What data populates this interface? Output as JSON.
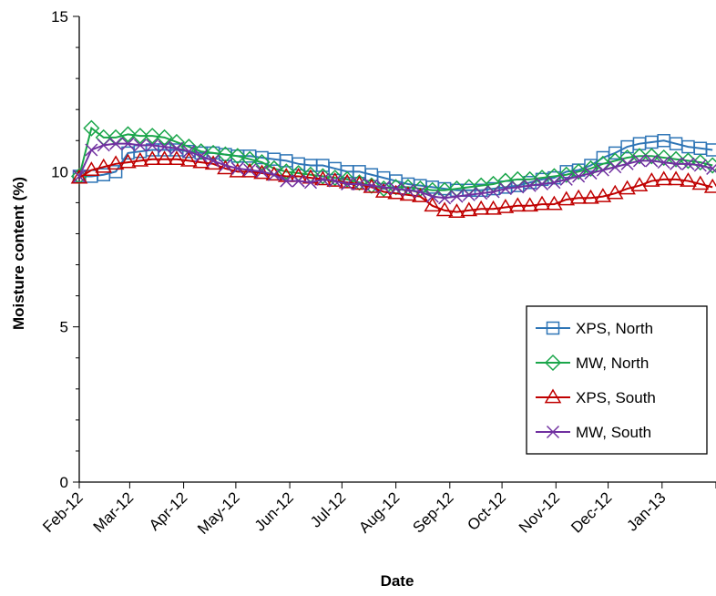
{
  "chart_data": {
    "type": "line",
    "xlabel": "Date",
    "ylabel": "Moisture content (%)",
    "x_tick_labels": [
      "Feb-12",
      "Mar-12",
      "Apr-12",
      "May-12",
      "Jun-12",
      "Jul-12",
      "Aug-12",
      "Sep-12",
      "Oct-12",
      "Nov-12",
      "Dec-12",
      "Jan-13"
    ],
    "y_ticks": [
      0,
      5,
      10,
      15
    ],
    "y_tick_labels": [
      "0",
      "5",
      "10",
      "15"
    ],
    "ylim": [
      0,
      15
    ],
    "xlim": [
      "2012-02-01",
      "2013-02-01"
    ],
    "grid": false,
    "legend_position": "bottom-right",
    "x": [
      "2012-02-01",
      "2012-02-08",
      "2012-02-15",
      "2012-02-22",
      "2012-02-29",
      "2012-03-07",
      "2012-03-14",
      "2012-03-21",
      "2012-03-28",
      "2012-04-04",
      "2012-04-11",
      "2012-04-18",
      "2012-04-25",
      "2012-05-02",
      "2012-05-09",
      "2012-05-16",
      "2012-05-23",
      "2012-05-30",
      "2012-06-06",
      "2012-06-13",
      "2012-06-20",
      "2012-06-27",
      "2012-07-04",
      "2012-07-11",
      "2012-07-18",
      "2012-07-25",
      "2012-08-01",
      "2012-08-08",
      "2012-08-15",
      "2012-08-22",
      "2012-08-29",
      "2012-09-05",
      "2012-09-12",
      "2012-09-19",
      "2012-09-26",
      "2012-10-03",
      "2012-10-10",
      "2012-10-17",
      "2012-10-24",
      "2012-10-31",
      "2012-11-07",
      "2012-11-14",
      "2012-11-21",
      "2012-11-28",
      "2012-12-05",
      "2012-12-12",
      "2012-12-19",
      "2012-12-26",
      "2013-01-02",
      "2013-01-09",
      "2013-01-16",
      "2013-01-23",
      "2013-01-30"
    ],
    "series": [
      {
        "name": "XPS, North",
        "color": "#2e75b6",
        "marker": "square",
        "values": [
          9.85,
          9.85,
          9.9,
          10.0,
          10.6,
          10.65,
          10.7,
          10.7,
          10.7,
          10.65,
          10.6,
          10.6,
          10.55,
          10.5,
          10.5,
          10.45,
          10.4,
          10.35,
          10.25,
          10.2,
          10.2,
          10.1,
          10.0,
          10.0,
          9.9,
          9.8,
          9.7,
          9.6,
          9.55,
          9.5,
          9.45,
          9.4,
          9.4,
          9.4,
          9.45,
          9.5,
          9.55,
          9.65,
          9.75,
          9.8,
          10.0,
          10.05,
          10.2,
          10.45,
          10.6,
          10.8,
          10.9,
          10.95,
          11.0,
          10.9,
          10.8,
          10.75,
          10.7
        ]
      },
      {
        "name": "MW, North",
        "color": "#1aa64a",
        "marker": "diamond",
        "values": [
          9.85,
          11.4,
          11.1,
          11.1,
          11.2,
          11.15,
          11.15,
          11.1,
          10.95,
          10.8,
          10.65,
          10.6,
          10.55,
          10.5,
          10.4,
          10.3,
          10.1,
          10.0,
          9.95,
          9.9,
          9.85,
          9.8,
          9.75,
          9.65,
          9.55,
          9.45,
          9.5,
          9.5,
          9.45,
          9.4,
          9.4,
          9.45,
          9.5,
          9.55,
          9.6,
          9.7,
          9.75,
          9.75,
          9.8,
          9.85,
          9.9,
          10.0,
          10.1,
          10.25,
          10.35,
          10.45,
          10.5,
          10.5,
          10.45,
          10.4,
          10.35,
          10.3,
          10.2
        ]
      },
      {
        "name": "XPS, South",
        "color": "#c00000",
        "marker": "triangle",
        "values": [
          9.8,
          10.05,
          10.15,
          10.25,
          10.3,
          10.35,
          10.4,
          10.4,
          10.4,
          10.35,
          10.3,
          10.25,
          10.1,
          10.0,
          10.0,
          9.95,
          9.9,
          9.85,
          9.85,
          9.8,
          9.75,
          9.7,
          9.65,
          9.6,
          9.5,
          9.35,
          9.3,
          9.25,
          9.2,
          8.9,
          8.75,
          8.7,
          8.75,
          8.8,
          8.8,
          8.85,
          8.9,
          8.9,
          8.95,
          8.95,
          9.1,
          9.15,
          9.15,
          9.2,
          9.3,
          9.45,
          9.55,
          9.7,
          9.75,
          9.75,
          9.7,
          9.6,
          9.5
        ]
      },
      {
        "name": "MW, South",
        "color": "#7030a0",
        "marker": "x",
        "values": [
          9.85,
          10.7,
          10.85,
          10.9,
          10.9,
          10.85,
          10.85,
          10.8,
          10.75,
          10.65,
          10.5,
          10.35,
          10.2,
          10.1,
          10.05,
          10.0,
          9.9,
          9.7,
          9.7,
          9.65,
          9.75,
          9.7,
          9.6,
          9.6,
          9.55,
          9.5,
          9.45,
          9.4,
          9.35,
          9.2,
          9.15,
          9.2,
          9.25,
          9.3,
          9.35,
          9.45,
          9.5,
          9.55,
          9.6,
          9.65,
          9.75,
          9.85,
          9.95,
          10.05,
          10.15,
          10.25,
          10.35,
          10.35,
          10.3,
          10.25,
          10.25,
          10.2,
          10.1
        ]
      }
    ]
  }
}
